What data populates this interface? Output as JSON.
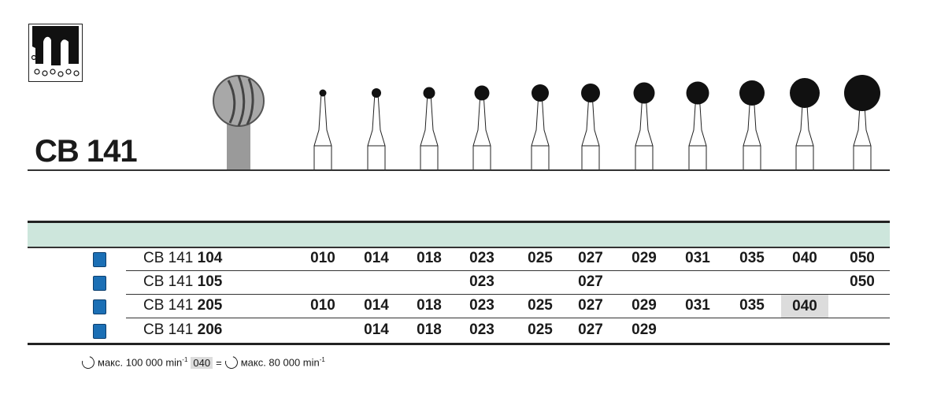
{
  "title": "CB 141",
  "logo": "tooth-bone-logo",
  "sizes": [
    "010",
    "014",
    "018",
    "023",
    "025",
    "027",
    "029",
    "031",
    "035",
    "040",
    "050"
  ],
  "rows": [
    {
      "prefix": "CB 141",
      "suffix": "104",
      "values": [
        "010",
        "014",
        "018",
        "023",
        "025",
        "027",
        "029",
        "031",
        "035",
        "040",
        "050"
      ],
      "highlight": null
    },
    {
      "prefix": "CB 141",
      "suffix": "105",
      "values": [
        "",
        "",
        "",
        "023",
        "",
        "027",
        "",
        "",
        "",
        "",
        "050"
      ],
      "highlight": null
    },
    {
      "prefix": "CB 141",
      "suffix": "205",
      "values": [
        "010",
        "014",
        "018",
        "023",
        "025",
        "027",
        "029",
        "031",
        "035",
        "040",
        ""
      ],
      "highlight": "040"
    },
    {
      "prefix": "CB 141",
      "suffix": "206",
      "values": [
        "",
        "014",
        "018",
        "023",
        "025",
        "027",
        "029",
        "",
        "",
        "",
        ""
      ],
      "highlight": null
    }
  ],
  "row_marker_color": "#1b6fb5",
  "band_color": "#cde6dc",
  "footnote": {
    "max1": "макс. 100 000 min",
    "exp1": "-1",
    "code": "040",
    "eq": "=",
    "max2": "макс. 80 000 min",
    "exp2": "-1"
  }
}
